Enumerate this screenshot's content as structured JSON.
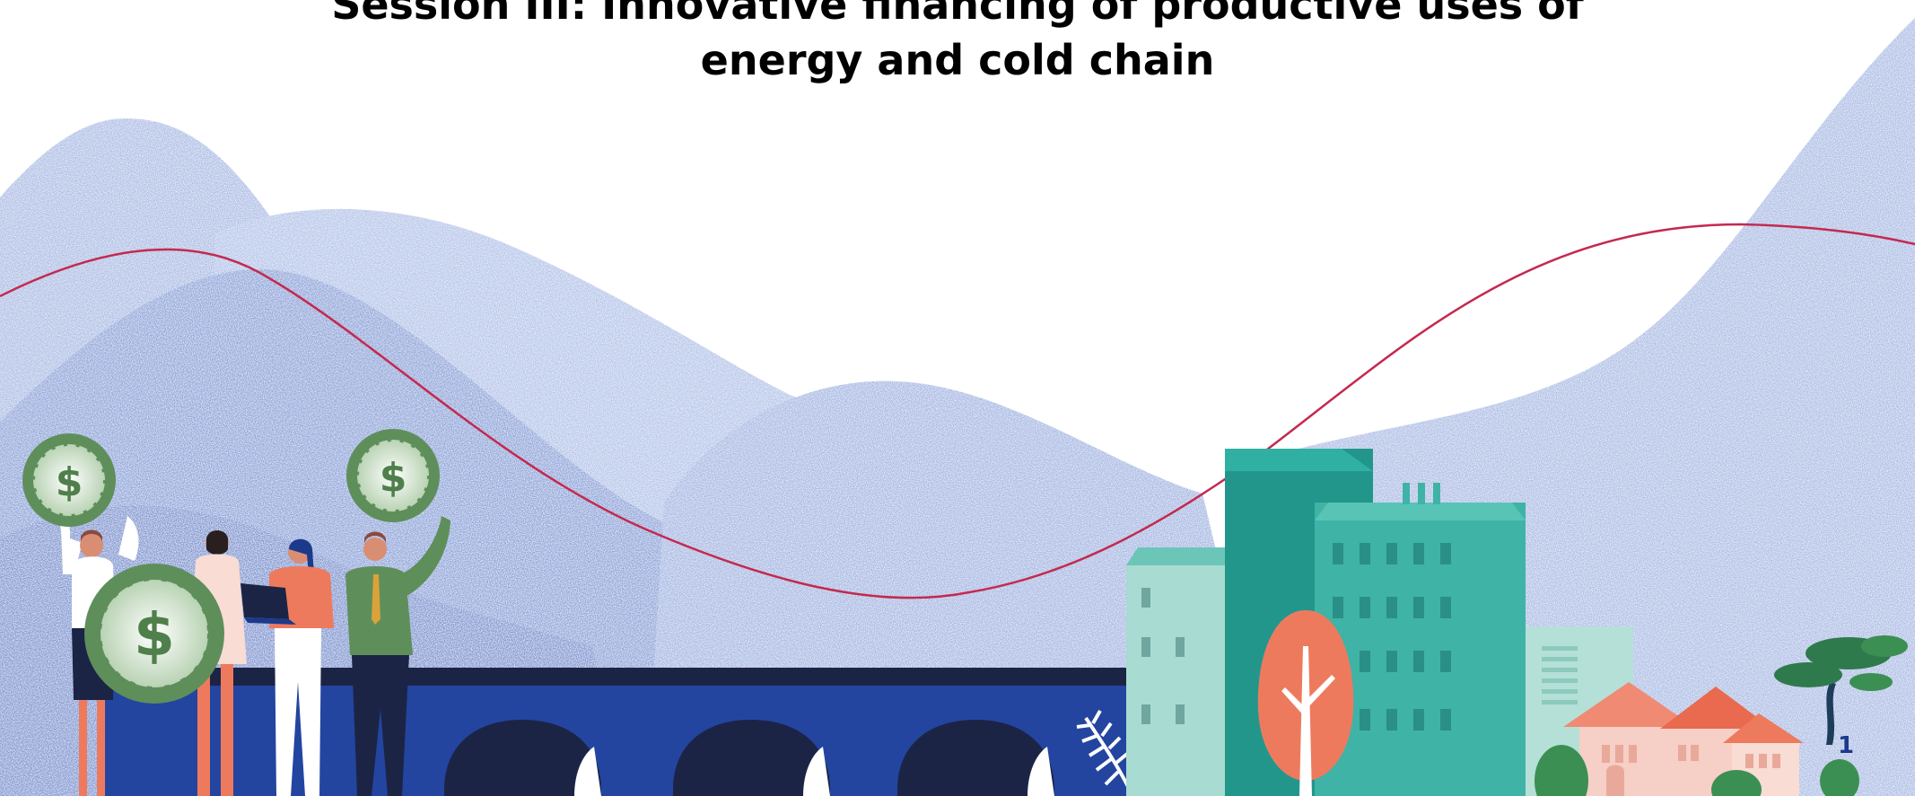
{
  "slide": {
    "title_line1": "Session III: Innovative financing of productive uses of",
    "title_line2": "energy and cold chain",
    "page_number": "1"
  },
  "colors": {
    "mountain_light": "#aebfe6",
    "mountain_mid": "#8ea6db",
    "mountain_dark": "#7289cc",
    "trend_line": "#c4294f",
    "bridge": "#2345a0",
    "bridge_dark": "#1c2446",
    "teal": "#3fb3a6",
    "teal_dark": "#23968c",
    "teal_light": "#a8dbd1",
    "coin_green": "#5e8f5a",
    "coral": "#ee7a5e",
    "house_pink": "#f6cfc6"
  },
  "icons": {
    "coin_symbol": "$"
  }
}
